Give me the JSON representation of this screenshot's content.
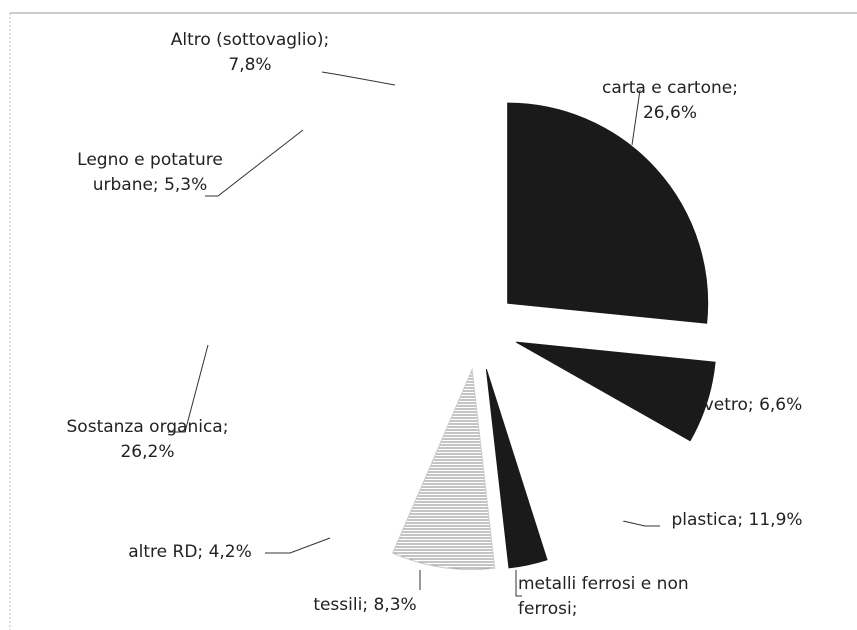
{
  "chart_data": {
    "type": "pie",
    "categories": [
      "carta e cartone;",
      "vetro;",
      "plastica;",
      "metalli ferrosi e non ferrosi;",
      "tessili;",
      "altre RD;",
      "Sostanza organica;",
      "Legno e potature urbane;",
      "Altro (sottovaglio);"
    ],
    "values": [
      26.6,
      6.6,
      11.9,
      3.1,
      8.3,
      4.2,
      26.2,
      5.3,
      7.8
    ],
    "value_labels": [
      "26,6%",
      "6,6%",
      "11,9%",
      null,
      "8,3%",
      "4,2%",
      "26,2%",
      "5,3%",
      "7,8%"
    ],
    "colors": [
      "#1a1a1a",
      "#1a1a1a",
      "#ffffff",
      "#1a1a1a",
      "hatch",
      "#ffffff",
      "#ffffff",
      "#ffffff",
      "#ffffff"
    ]
  }
}
